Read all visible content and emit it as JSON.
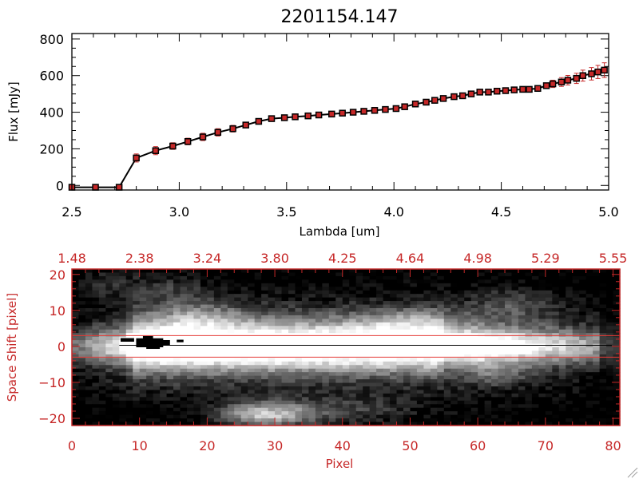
{
  "chart_data": [
    {
      "type": "line",
      "title": "2201154.147",
      "xlabel": "Lambda [um]",
      "ylabel": "Flux [mJy]",
      "xlim": [
        2.5,
        5.0
      ],
      "ylim": [
        -25,
        830
      ],
      "xticks": [
        2.5,
        3.0,
        3.5,
        4.0,
        4.5,
        5.0
      ],
      "xtick_labels": [
        "2.5",
        "3.0",
        "3.5",
        "4.0",
        "4.5",
        "5.0"
      ],
      "yticks": [
        0,
        200,
        400,
        600,
        800
      ],
      "ytick_labels": [
        "0",
        "200",
        "400",
        "600",
        "800"
      ],
      "line_color": "#000000",
      "marker_color": "#c62828",
      "error_color": "#c62828",
      "series": [
        {
          "x": [
            2.5,
            2.61,
            2.72,
            2.8,
            2.89,
            2.97,
            3.04,
            3.11,
            3.18,
            3.25,
            3.31,
            3.37,
            3.43,
            3.49,
            3.54,
            3.6,
            3.65,
            3.71,
            3.76,
            3.81,
            3.86,
            3.91,
            3.96,
            4.01,
            4.05,
            4.1,
            4.15,
            4.19,
            4.23,
            4.28,
            4.32,
            4.36,
            4.4,
            4.44,
            4.48,
            4.52,
            4.56,
            4.6,
            4.63,
            4.67,
            4.71,
            4.74,
            4.78,
            4.81,
            4.85,
            4.88,
            4.92,
            4.95,
            4.98
          ],
          "y": [
            -10,
            -10,
            -10,
            150,
            190,
            215,
            240,
            265,
            290,
            310,
            330,
            350,
            365,
            370,
            375,
            380,
            385,
            390,
            395,
            400,
            405,
            410,
            415,
            420,
            430,
            445,
            455,
            465,
            475,
            485,
            490,
            500,
            510,
            510,
            515,
            518,
            522,
            525,
            525,
            530,
            545,
            555,
            565,
            575,
            585,
            600,
            610,
            620,
            630
          ],
          "error": [
            3,
            3,
            3,
            22,
            22,
            18,
            18,
            20,
            20,
            18,
            14,
            12,
            10,
            8,
            8,
            8,
            8,
            8,
            8,
            8,
            8,
            8,
            8,
            8,
            8,
            8,
            8,
            8,
            8,
            8,
            8,
            8,
            10,
            10,
            10,
            10,
            10,
            12,
            12,
            12,
            14,
            20,
            24,
            26,
            28,
            30,
            34,
            36,
            40
          ]
        }
      ]
    },
    {
      "type": "heatmap",
      "xlabel": "Pixel",
      "ylabel": "Space Shift [pixel]",
      "xlim": [
        0,
        81
      ],
      "ylim": [
        -22,
        21.5
      ],
      "xticks": [
        0,
        10,
        20,
        30,
        40,
        50,
        60,
        70,
        80
      ],
      "xtick_labels": [
        "0",
        "10",
        "20",
        "30",
        "40",
        "50",
        "60",
        "70",
        "80"
      ],
      "yticks": [
        -20,
        -10,
        0,
        10,
        20
      ],
      "ytick_labels": [
        "−20",
        "−10",
        "0",
        "10",
        "20"
      ],
      "top_axis_labels": [
        "1.48",
        "2.38",
        "3.24",
        "3.80",
        "4.25",
        "4.64",
        "4.98",
        "5.29",
        "5.55"
      ],
      "aperture_lines": [
        -3,
        3
      ],
      "aperture_color": "#e53935",
      "axis_color": "#c62828",
      "colormap": "grayscale"
    }
  ]
}
